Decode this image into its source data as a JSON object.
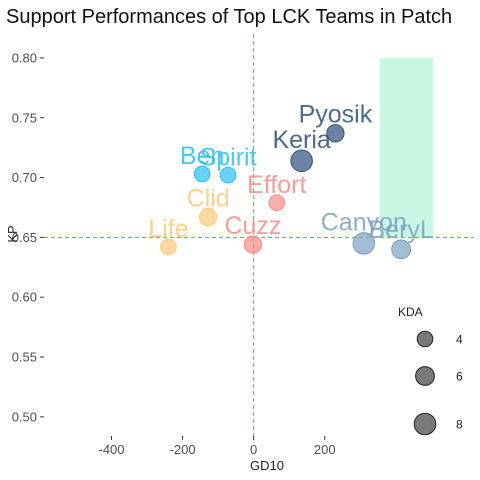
{
  "chart_data": {
    "type": "scatter",
    "title": "Support Performances of Top LCK Teams in Patch",
    "xlabel": "GD10",
    "ylabel": "KP",
    "xlim": [
      -590,
      620
    ],
    "ylim": [
      0.484,
      0.82
    ],
    "x_ticks": [
      -400,
      -200,
      0,
      200
    ],
    "x_tick_labels": [
      "-400",
      "-200",
      "0",
      "200"
    ],
    "y_ticks": [
      0.5,
      0.55,
      0.6,
      0.65,
      0.7,
      0.75,
      0.8
    ],
    "y_tick_labels": [
      "0.50",
      "0.55",
      "0.60",
      "0.65",
      "0.70",
      "0.75",
      "0.80"
    ],
    "grid": false,
    "reference_lines": {
      "x": 0,
      "y": 0.65,
      "color": "#5fb53a",
      "style": "dashed"
    },
    "highlight_region": {
      "x": [
        355,
        505
      ],
      "y": [
        0.65,
        0.8
      ],
      "color": "#c8f7e4"
    },
    "points": [
      {
        "label": "Pyosik",
        "x": 230,
        "y": 0.737,
        "kda": 5.0,
        "color": "#2f4f7e"
      },
      {
        "label": "Keria",
        "x": 135,
        "y": 0.714,
        "kda": 8.0,
        "color": "#2f4f7e"
      },
      {
        "label": "Ben",
        "x": -145,
        "y": 0.703,
        "kda": 4.0,
        "color": "#29bff5"
      },
      {
        "label": "Spirit",
        "x": -72,
        "y": 0.702,
        "kda": 4.0,
        "color": "#29bff5"
      },
      {
        "label": "Effort",
        "x": 65,
        "y": 0.679,
        "kda": 4.0,
        "color": "#f88a8a"
      },
      {
        "label": "Clid",
        "x": -128,
        "y": 0.667,
        "kda": 5.0,
        "color": "#fdc976"
      },
      {
        "label": "Life",
        "x": -240,
        "y": 0.642,
        "kda": 4.0,
        "color": "#fdc976"
      },
      {
        "label": "Cuzz",
        "x": -2,
        "y": 0.644,
        "kda": 5.0,
        "color": "#f88a8a"
      },
      {
        "label": "Canyon",
        "x": 310,
        "y": 0.645,
        "kda": 8.0,
        "color": "#7d9fc2"
      },
      {
        "label": "BeryL",
        "x": 415,
        "y": 0.64,
        "kda": 6.0,
        "color": "#7d9fc2"
      }
    ],
    "size_legend": {
      "title": "KDA",
      "position": "bottom-right",
      "entries": [
        {
          "label": "4",
          "value": 4
        },
        {
          "label": "6",
          "value": 6
        },
        {
          "label": "8",
          "value": 8
        }
      ]
    }
  }
}
